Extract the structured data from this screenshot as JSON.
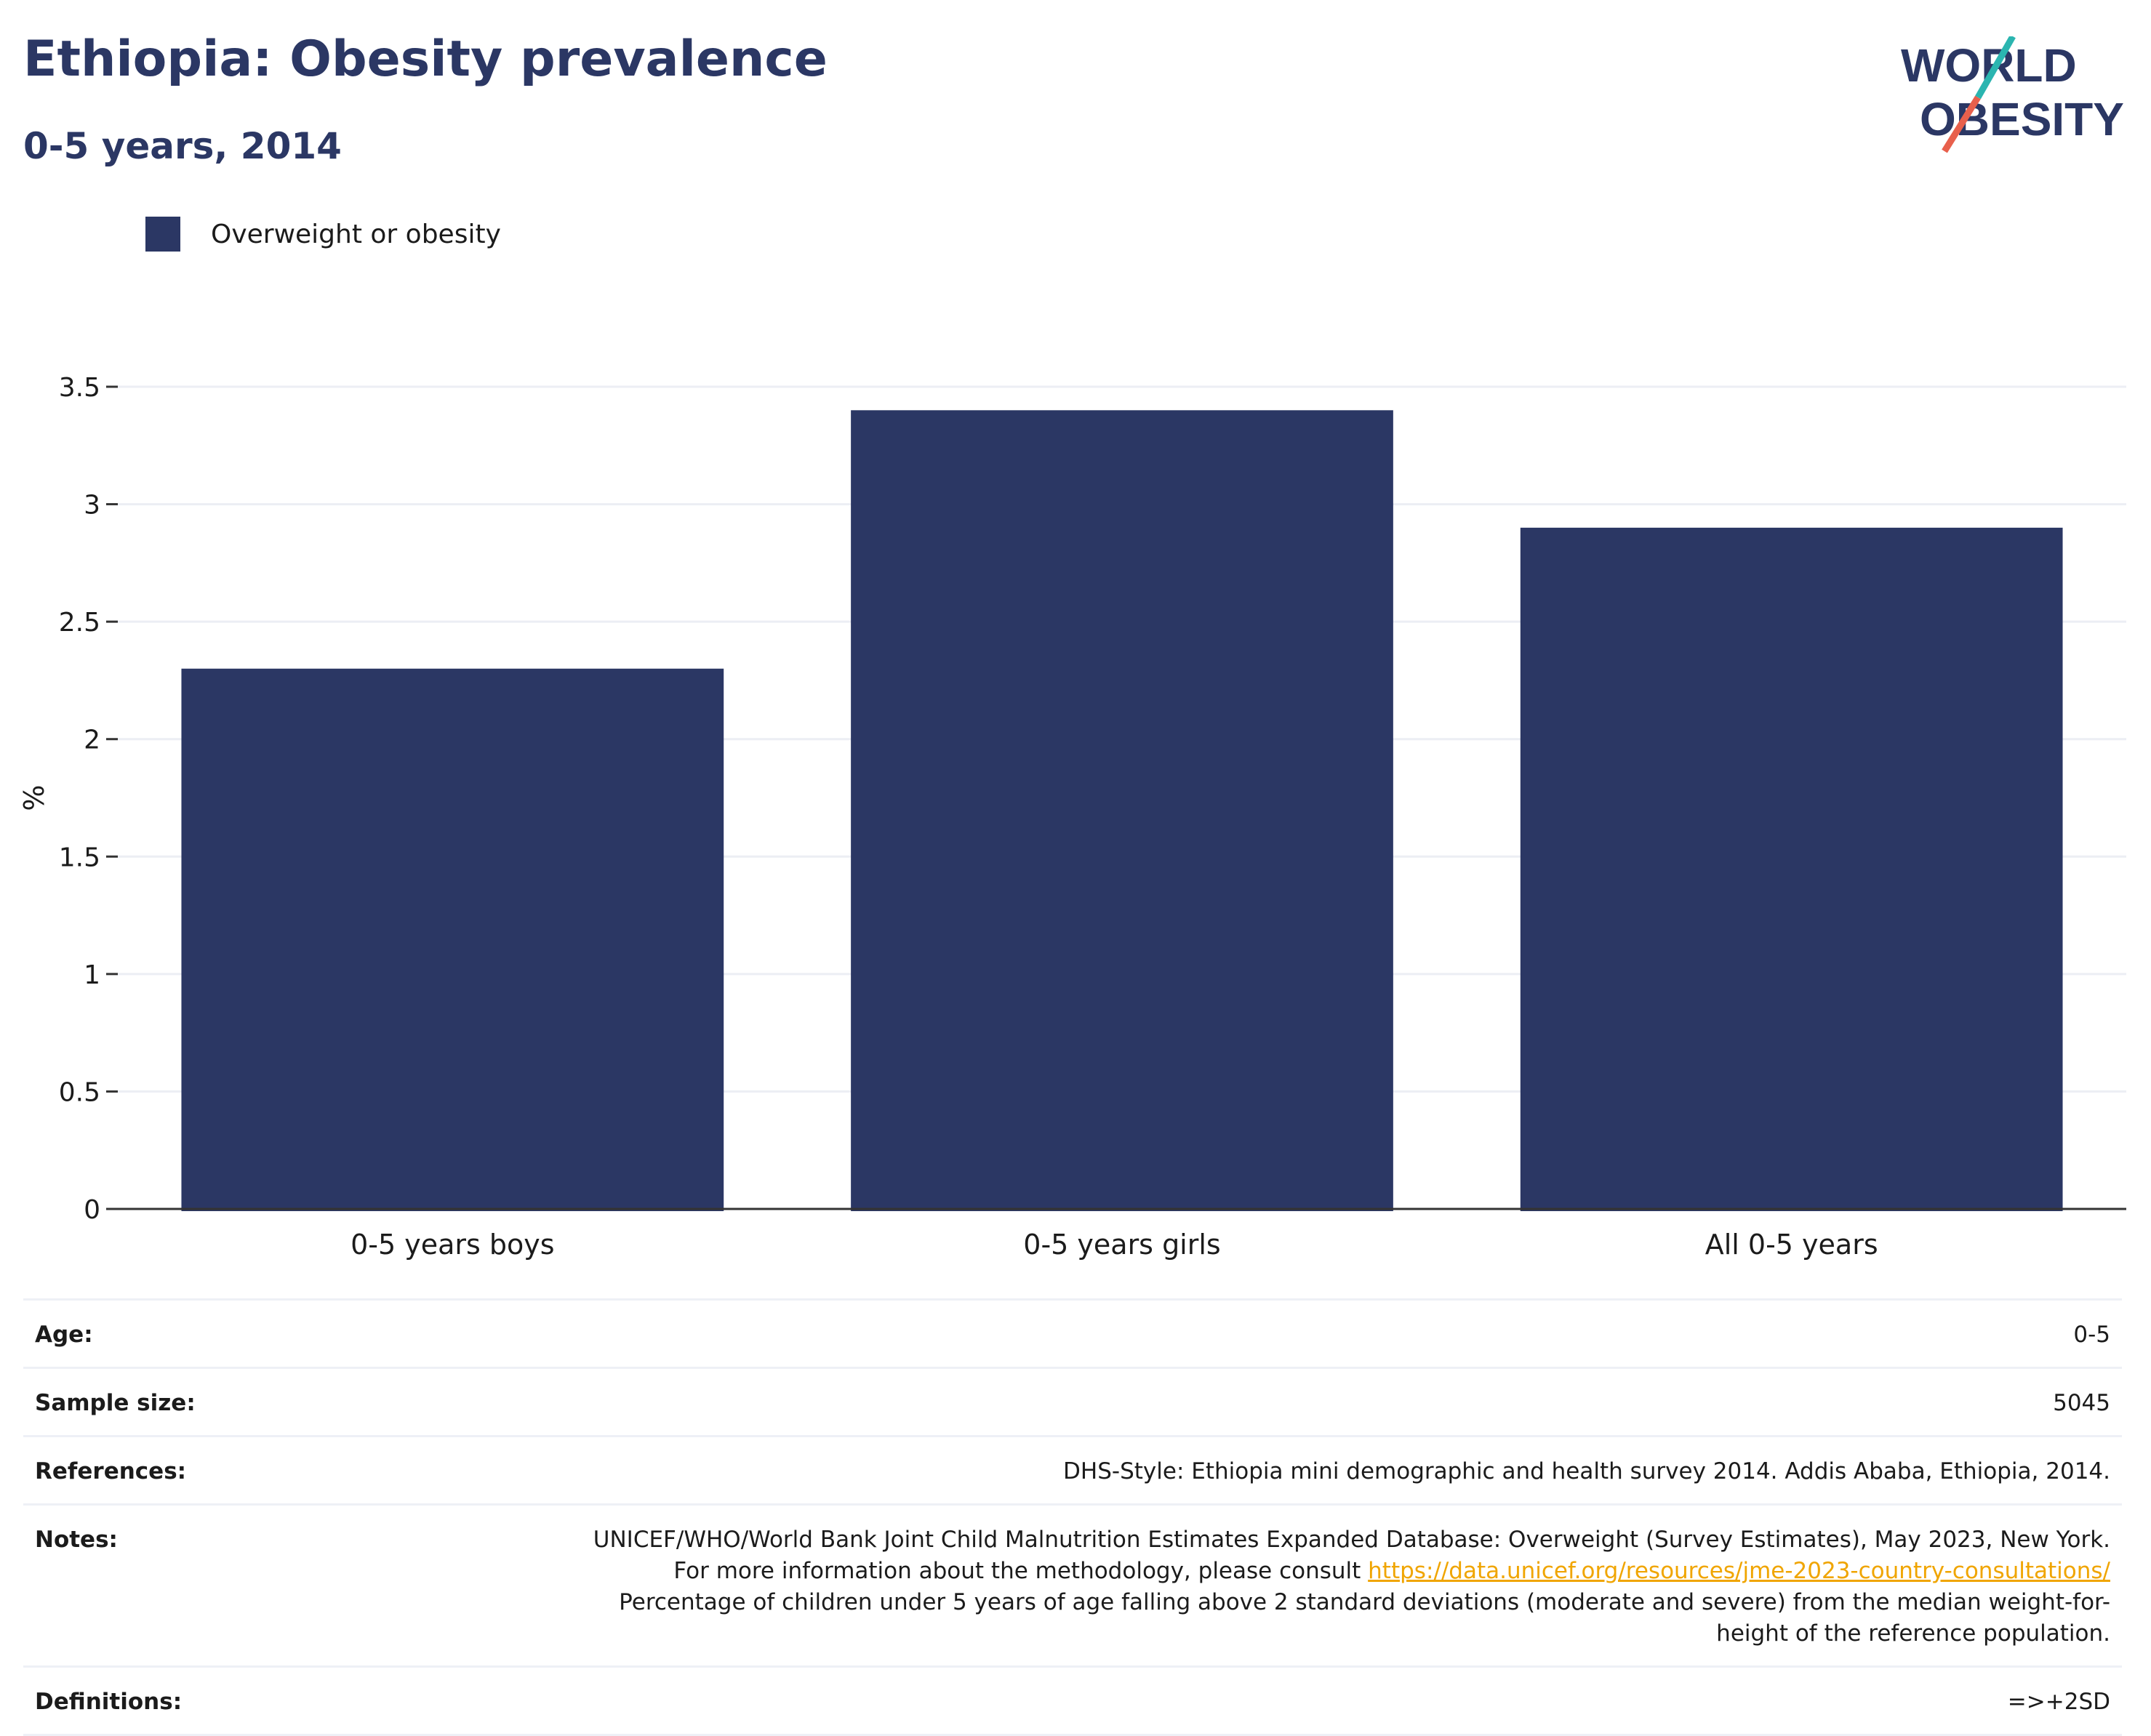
{
  "header": {
    "title": "Ethiopia: Obesity prevalence",
    "subtitle": "0-5 years, 2014",
    "logo_line1": "WORLD",
    "logo_line2": "OBESITY"
  },
  "legend": {
    "label": "Overweight or obesity"
  },
  "colors": {
    "bar": "#2b3764",
    "grid": "#eceef4",
    "axis": "#333333",
    "link": "#f0a500",
    "logo_teal": "#2bb5b0",
    "logo_coral": "#e8604c"
  },
  "chart_data": {
    "type": "bar",
    "categories": [
      "0-5 years boys",
      "0-5 years girls",
      "All 0-5 years"
    ],
    "series": [
      {
        "name": "Overweight or obesity",
        "values": [
          2.3,
          3.4,
          2.9
        ]
      }
    ],
    "ylabel": "%",
    "xlabel": "",
    "ylim": [
      0,
      3.5
    ],
    "yticks": [
      0,
      0.5,
      1,
      1.5,
      2,
      2.5,
      3,
      3.5
    ],
    "ytick_labels": [
      "0",
      "0.5",
      "1",
      "1.5",
      "2",
      "2.5",
      "3",
      "3.5"
    ],
    "grid": true,
    "legend_position": "top-left"
  },
  "details": {
    "age_label": "Age:",
    "age_value": "0-5",
    "sample_label": "Sample size:",
    "sample_value": "5045",
    "references_label": "References:",
    "references_value": "DHS-Style: Ethiopia mini demographic and health survey 2014. Addis Ababa, Ethiopia, 2014.",
    "notes_label": "Notes:",
    "notes_text_1": "UNICEF/WHO/World Bank Joint Child Malnutrition Estimates Expanded Database: Overweight (Survey Estimates), May 2023, New York. For more information about the methodology, please consult ",
    "notes_link": "https://data.unicef.org/resources/jme-2023-country-consultations/",
    "notes_text_2": "Percentage of children under 5 years of age falling above 2 standard deviations (moderate and severe) from the median weight-for-height of the reference population.",
    "definitions_label": "Definitions:",
    "definitions_value": "=>+2SD"
  }
}
